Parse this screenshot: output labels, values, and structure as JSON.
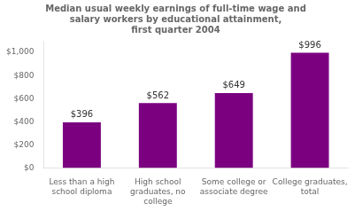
{
  "chart_data": {
    "type": "bar",
    "title": "Median usual weekly earnings of full-time wage and\nsalary workers by educational attainment,\nfirst quarter 2004",
    "categories": [
      "Less than a high\nschool diploma",
      "High school\ngraduates, no\ncollege",
      "Some college or\nassociate degree",
      "College graduates,\ntotal"
    ],
    "values": [
      396,
      562,
      649,
      996
    ],
    "value_labels": [
      "$396",
      "$562",
      "$649",
      "$996"
    ],
    "data_labels": true,
    "color": "#7B0080",
    "ylim": [
      0,
      1100
    ],
    "yticks": [
      {
        "value": 0,
        "label": "$0"
      },
      {
        "value": 200,
        "label": "$200"
      },
      {
        "value": 400,
        "label": "$400"
      },
      {
        "value": 600,
        "label": "$600"
      },
      {
        "value": 800,
        "label": "$800"
      },
      {
        "value": 1000,
        "label": "$1,000"
      }
    ],
    "grid": false
  }
}
